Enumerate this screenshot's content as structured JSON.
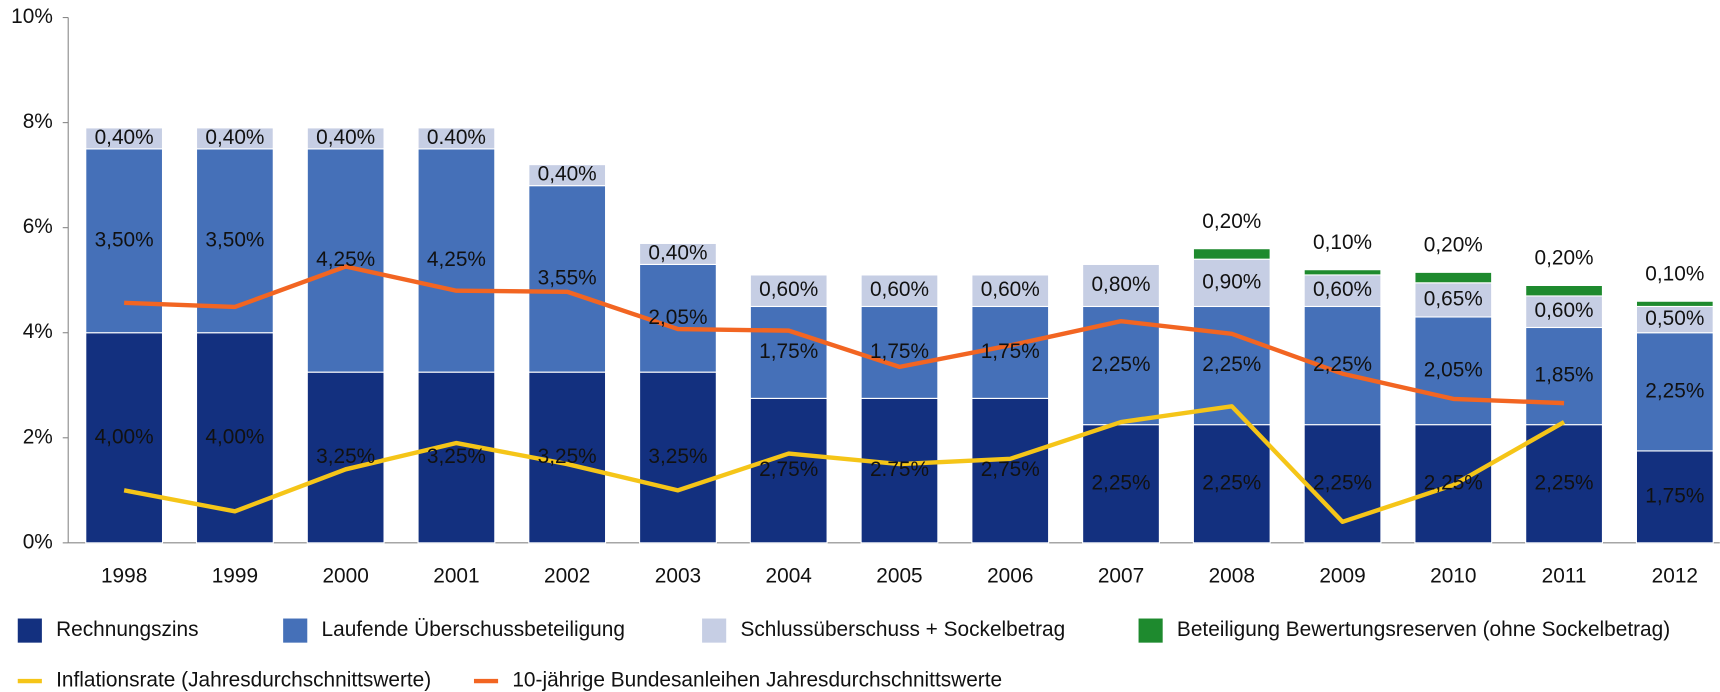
{
  "chart_data": {
    "type": "bar",
    "stacked": true,
    "categories": [
      "1998",
      "1999",
      "2000",
      "2001",
      "2002",
      "2003",
      "2004",
      "2005",
      "2006",
      "2007",
      "2008",
      "2009",
      "2010",
      "2011",
      "2012"
    ],
    "ylim": [
      0,
      10
    ],
    "yticks": [
      {
        "value": 0,
        "label": "0%"
      },
      {
        "value": 2,
        "label": "2%"
      },
      {
        "value": 4,
        "label": "4%"
      },
      {
        "value": 6,
        "label": "6%"
      },
      {
        "value": 8,
        "label": "8%"
      },
      {
        "value": 10,
        "label": "10%"
      }
    ],
    "series": [
      {
        "name": "Rechnungszins",
        "type": "bar",
        "color": "#13307f",
        "values": [
          4,
          4,
          3.25,
          3.25,
          3.25,
          3.25,
          2.75,
          2.75,
          2.75,
          2.25,
          2.25,
          2.25,
          2.25,
          2.25,
          1.75
        ],
        "value_labels": [
          "4,00%",
          "4,00%",
          "3,25%",
          "3,25%",
          "3,25%",
          "3,25%",
          "2,75%",
          "2.75%",
          "2,75%",
          "2,25%",
          "2,25%",
          "2,25%",
          "2,25%",
          "2,25%",
          "1,75%"
        ]
      },
      {
        "name": "Laufende Überschussbeteiligung",
        "type": "bar",
        "color": "#4570b8",
        "values": [
          3.5,
          3.5,
          4.25,
          4.25,
          3.55,
          2.05,
          1.75,
          1.75,
          1.75,
          2.25,
          2.25,
          2.25,
          2.05,
          1.85,
          2.25
        ],
        "value_labels": [
          "3,50%",
          "3,50%",
          "4,25%",
          "4,25%",
          "3,55%",
          "2,05%",
          "1,75%",
          "1,75%",
          "1,75%",
          "2,25%",
          "2,25%",
          "2,25%",
          "2,05%",
          "1,85%",
          "2,25%"
        ]
      },
      {
        "name": "Schlussüberschuss + Sockelbetrag",
        "type": "bar",
        "color": "#c6cee4",
        "values": [
          0.4,
          0.4,
          0.4,
          0.4,
          0.4,
          0.4,
          0.6,
          0.6,
          0.6,
          0.8,
          0.9,
          0.6,
          0.65,
          0.6,
          0.5
        ],
        "value_labels": [
          "0,40%",
          "0,40%",
          "0,40%",
          "0.40%",
          "0,40%",
          "0,40%",
          "0,60%",
          "0,60%",
          "0,60%",
          "0,80%",
          "0,90%",
          "0,60%",
          "0,65%",
          "0,60%",
          "0,50%"
        ]
      },
      {
        "name": "Beteiligung Bewertungsreserven (ohne Sockelbetrag)",
        "type": "bar",
        "color": "#1e8a2e",
        "values": [
          null,
          null,
          null,
          null,
          null,
          null,
          null,
          null,
          null,
          null,
          0.2,
          0.1,
          0.2,
          0.2,
          0.1
        ],
        "value_labels": [
          null,
          null,
          null,
          null,
          null,
          null,
          null,
          null,
          null,
          null,
          "0,20%",
          "0,10%",
          "0,20%",
          "0,20%",
          "0,10%"
        ]
      },
      {
        "name": "Inflationsrate (Jahresdurchschnittswerte)",
        "type": "line",
        "color": "#f5c518",
        "values": [
          1.0,
          0.6,
          1.4,
          1.9,
          1.5,
          1.0,
          1.7,
          1.5,
          1.6,
          2.3,
          2.6,
          0.4,
          1.1,
          2.3,
          null
        ]
      },
      {
        "name": "10-jährige Bundesanleihen Jahresdurchschnittswerte",
        "type": "line",
        "color": "#f26522",
        "values": [
          4.57,
          4.49,
          5.26,
          4.8,
          4.78,
          4.07,
          4.04,
          3.35,
          3.76,
          4.22,
          3.98,
          3.22,
          2.74,
          2.66,
          null
        ]
      }
    ]
  }
}
